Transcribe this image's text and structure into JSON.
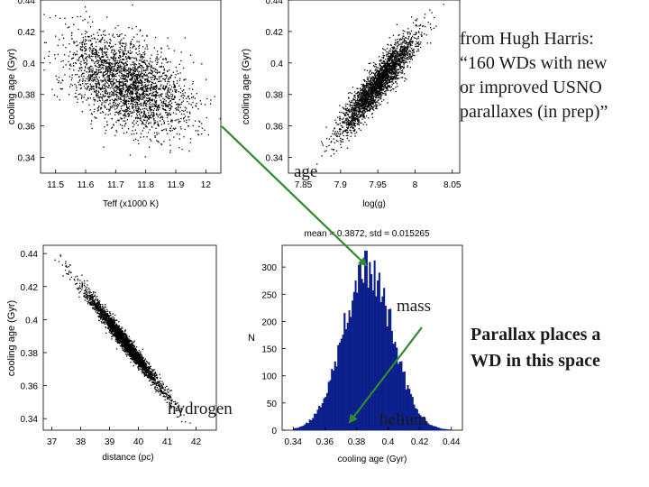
{
  "annotations": {
    "harris_lines": [
      "from Hugh Harris:",
      "“160 WDs with new",
      "or improved USNO",
      "parallaxes (in prep)”"
    ],
    "parallax_lines": [
      "Parallax places a",
      "WD in this space"
    ],
    "age_label": "age",
    "mass_label": "mass",
    "hydrogen_label": "hydrogen",
    "helium_label": "helium",
    "arrow_color": "#2e8b2e"
  },
  "chart_data": [
    {
      "type": "scatter",
      "xlabel": "Teff (x1000 K)",
      "ylabel": "cooling age (Gyr)",
      "xlim": [
        11.45,
        12.05
      ],
      "ylim": [
        0.33,
        0.44
      ],
      "xticks": [
        11.5,
        11.6,
        11.7,
        11.8,
        11.9,
        12
      ],
      "xtick_labels": [
        "11.5",
        "11.6",
        "11.7",
        "11.8",
        "11.9",
        "12"
      ],
      "yticks": [
        0.34,
        0.36,
        0.38,
        0.4,
        0.42,
        0.44
      ],
      "ytick_labels": [
        "0.34",
        "0.36",
        "0.38",
        "0.4",
        "0.42",
        "0.44"
      ],
      "cloud": {
        "n": 2600,
        "x_mean": 11.74,
        "x_sd": 0.1,
        "y_mean": 0.387,
        "y_sd": 0.0153,
        "corr": -0.45
      },
      "color": "#000000"
    },
    {
      "type": "scatter",
      "xlabel": "log(g)",
      "ylabel": "cooling age (Gyr)",
      "xlim": [
        7.83,
        8.06
      ],
      "ylim": [
        0.33,
        0.44
      ],
      "xticks": [
        7.85,
        7.9,
        7.95,
        8,
        8.05
      ],
      "xtick_labels": [
        "7.85",
        "7.9",
        "7.95",
        "8",
        "8.05"
      ],
      "yticks": [
        0.34,
        0.36,
        0.38,
        0.4,
        0.42,
        0.44
      ],
      "ytick_labels": [
        "0.34",
        "0.36",
        "0.38",
        "0.4",
        "0.42",
        "0.44"
      ],
      "cloud": {
        "n": 2600,
        "x_mean": 7.95,
        "x_sd": 0.025,
        "y_mean": 0.387,
        "y_sd": 0.0153,
        "corr": 0.92
      },
      "color": "#000000"
    },
    {
      "type": "scatter",
      "xlabel": "distance (pc)",
      "ylabel": "cooling age (Gyr)",
      "xlim": [
        36.7,
        42.7
      ],
      "ylim": [
        0.333,
        0.445
      ],
      "xticks": [
        37,
        38,
        39,
        40,
        41,
        42
      ],
      "xtick_labels": [
        "37",
        "38",
        "39",
        "40",
        "41",
        "42"
      ],
      "yticks": [
        0.34,
        0.36,
        0.38,
        0.4,
        0.42,
        0.44
      ],
      "ytick_labels": [
        "0.34",
        "0.36",
        "0.38",
        "0.4",
        "0.42",
        "0.44"
      ],
      "cloud": {
        "n": 2600,
        "x_mean": 39.5,
        "x_sd": 0.68,
        "y_mean": 0.387,
        "y_sd": 0.0153,
        "corr": -0.985
      },
      "color": "#000000"
    },
    {
      "type": "bar",
      "title": "mean = 0.3872, std = 0.015265",
      "xlabel": "cooling age (Gyr)",
      "ylabel": "N",
      "xlim": [
        0.333,
        0.447
      ],
      "ylim": [
        0,
        340
      ],
      "xticks": [
        0.34,
        0.36,
        0.38,
        0.4,
        0.42,
        0.44
      ],
      "xtick_labels": [
        "0.34",
        "0.36",
        "0.38",
        "0.4",
        "0.42",
        "0.44"
      ],
      "yticks": [
        0,
        50,
        100,
        150,
        200,
        250,
        300
      ],
      "ytick_labels": [
        "0",
        "50",
        "100",
        "150",
        "200",
        "250",
        "300"
      ],
      "mean": 0.3872,
      "std": 0.015265,
      "peak_count": 330,
      "bins": 100,
      "range": [
        0.34,
        0.44
      ],
      "color": "#0a1e8c"
    }
  ]
}
